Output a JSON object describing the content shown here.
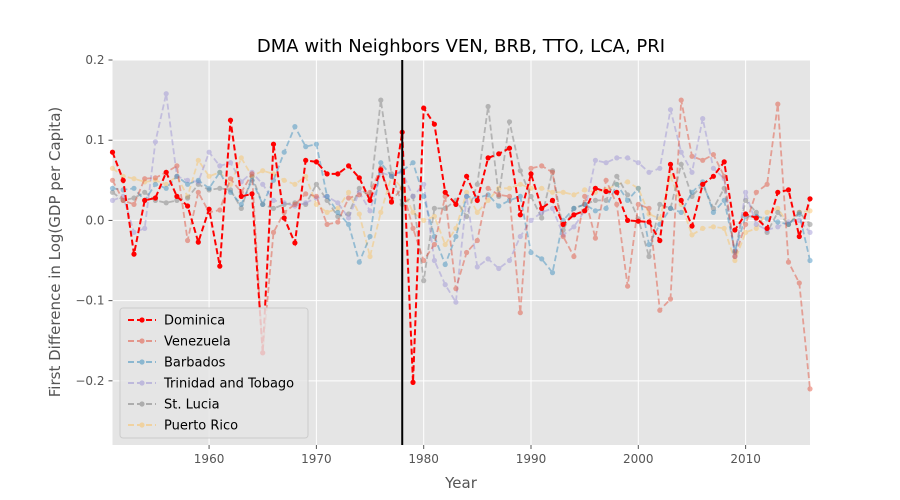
{
  "chart_data": {
    "type": "line",
    "title": "DMA with Neighbors VEN, BRB, TTO, LCA, PRI",
    "xlabel": "Year",
    "ylabel": "First Difference in Log(GDP per Capita)",
    "xlim": [
      1951,
      2016
    ],
    "ylim": [
      -0.28,
      0.2
    ],
    "xticks": [
      1960,
      1970,
      1980,
      1990,
      2000,
      2010
    ],
    "yticks": [
      -0.2,
      -0.1,
      0.0,
      0.1,
      0.2
    ],
    "ytick_labels": [
      "−0.2",
      "−0.1",
      "0.0",
      "0.1",
      "0.2"
    ],
    "grid": true,
    "legend_position": "lower-left",
    "treatment_line_x": 1978,
    "x": [
      1951,
      1952,
      1953,
      1954,
      1955,
      1956,
      1957,
      1958,
      1959,
      1960,
      1961,
      1962,
      1963,
      1964,
      1965,
      1966,
      1967,
      1968,
      1969,
      1970,
      1971,
      1972,
      1973,
      1974,
      1975,
      1976,
      1977,
      1978,
      1979,
      1980,
      1981,
      1982,
      1983,
      1984,
      1985,
      1986,
      1987,
      1988,
      1989,
      1990,
      1991,
      1992,
      1993,
      1994,
      1995,
      1996,
      1997,
      1998,
      1999,
      2000,
      2001,
      2002,
      2003,
      2004,
      2005,
      2006,
      2007,
      2008,
      2009,
      2010,
      2011,
      2012,
      2013,
      2014,
      2015,
      2016
    ],
    "series": [
      {
        "name": "Dominica",
        "color": "#ff0000",
        "opacity": 1.0,
        "values": [
          0.085,
          0.05,
          -0.042,
          0.025,
          0.028,
          0.06,
          0.03,
          0.018,
          -0.027,
          0.014,
          -0.057,
          0.125,
          0.03,
          0.033,
          -0.165,
          0.095,
          0.003,
          -0.028,
          0.075,
          0.073,
          0.058,
          0.058,
          0.068,
          0.053,
          0.025,
          0.063,
          0.023,
          0.11,
          -0.202,
          0.14,
          0.12,
          0.035,
          0.02,
          0.055,
          0.025,
          0.078,
          0.083,
          0.09,
          0.007,
          0.058,
          0.015,
          0.025,
          -0.005,
          0.007,
          0.012,
          0.04,
          0.036,
          0.035,
          0.0,
          -0.001,
          -0.002,
          -0.025,
          0.07,
          0.025,
          -0.007,
          0.045,
          0.055,
          0.073,
          -0.012,
          0.008,
          0.003,
          -0.01,
          0.035,
          0.038,
          -0.02,
          0.027
        ]
      },
      {
        "name": "Venezuela",
        "color": "#e24a33",
        "opacity": 0.45,
        "values": [
          0.05,
          0.025,
          0.02,
          0.052,
          0.053,
          0.06,
          0.068,
          -0.025,
          0.035,
          0.01,
          0.013,
          0.052,
          0.035,
          0.058,
          -0.165,
          -0.015,
          0.01,
          0.02,
          0.033,
          0.03,
          -0.005,
          -0.002,
          0.028,
          0.032,
          0.035,
          0.065,
          0.025,
          0.04,
          -0.01,
          -0.05,
          -0.03,
          0.03,
          -0.085,
          -0.04,
          -0.025,
          0.04,
          0.032,
          0.03,
          -0.115,
          0.065,
          0.068,
          0.06,
          -0.02,
          -0.045,
          0.03,
          -0.022,
          0.05,
          0.02,
          -0.082,
          0.02,
          0.015,
          -0.112,
          -0.098,
          0.15,
          0.08,
          0.075,
          0.082,
          0.055,
          -0.045,
          -0.005,
          0.035,
          0.045,
          0.145,
          -0.052,
          -0.078,
          -0.21
        ]
      },
      {
        "name": "Barbados",
        "color": "#348abd",
        "opacity": 0.45,
        "values": [
          0.04,
          0.038,
          0.04,
          0.025,
          0.045,
          0.04,
          0.055,
          0.045,
          0.05,
          0.04,
          0.06,
          0.035,
          0.02,
          0.05,
          0.02,
          0.05,
          0.085,
          0.117,
          0.092,
          0.095,
          0.03,
          0.01,
          -0.005,
          -0.052,
          -0.02,
          0.072,
          0.055,
          0.062,
          0.072,
          0.03,
          -0.02,
          -0.055,
          -0.02,
          0.03,
          0.028,
          0.032,
          0.018,
          0.025,
          0.03,
          -0.04,
          -0.048,
          -0.065,
          0.0,
          0.015,
          0.02,
          0.012,
          0.015,
          0.045,
          0.025,
          0.04,
          -0.03,
          -0.005,
          0.015,
          0.01,
          0.035,
          0.048,
          0.01,
          0.025,
          -0.038,
          0.005,
          0.005,
          0.002,
          -0.002,
          -0.005,
          0.008,
          -0.05
        ]
      },
      {
        "name": "Trinidad and Tobago",
        "color": "#988ed5",
        "opacity": 0.45,
        "values": [
          0.025,
          0.03,
          -0.015,
          -0.01,
          0.098,
          0.158,
          0.055,
          0.05,
          0.048,
          0.085,
          0.068,
          0.072,
          0.048,
          0.06,
          0.045,
          0.025,
          0.022,
          0.018,
          0.022,
          0.028,
          0.03,
          0.022,
          0.003,
          0.035,
          0.012,
          0.06,
          0.055,
          0.06,
          0.03,
          0.045,
          -0.05,
          -0.08,
          -0.102,
          0.03,
          -0.058,
          -0.048,
          -0.06,
          -0.05,
          -0.02,
          0.0,
          0.01,
          0.015,
          -0.018,
          -0.008,
          0.012,
          0.075,
          0.072,
          0.078,
          0.078,
          0.072,
          0.06,
          0.065,
          0.138,
          0.085,
          0.06,
          0.127,
          0.065,
          0.052,
          -0.045,
          0.035,
          -0.005,
          -0.012,
          -0.008,
          -0.002,
          0.0,
          -0.015
        ]
      },
      {
        "name": "St. Lucia",
        "color": "#777777",
        "opacity": 0.45,
        "values": [
          0.035,
          0.025,
          0.028,
          0.035,
          0.025,
          0.022,
          0.025,
          0.028,
          0.045,
          0.038,
          0.04,
          0.038,
          0.015,
          0.055,
          0.02,
          0.015,
          0.02,
          0.022,
          0.02,
          0.045,
          0.025,
          0.005,
          0.008,
          0.04,
          0.03,
          0.15,
          0.058,
          0.02,
          0.03,
          -0.075,
          0.015,
          0.015,
          0.025,
          0.005,
          0.045,
          0.142,
          0.03,
          0.123,
          0.062,
          0.03,
          0.003,
          0.062,
          -0.012,
          0.015,
          0.02,
          0.025,
          0.025,
          0.055,
          0.032,
          0.002,
          -0.045,
          0.02,
          0.015,
          0.07,
          0.03,
          0.045,
          0.015,
          0.04,
          -0.04,
          0.025,
          0.01,
          -0.015,
          0.01,
          -0.005,
          0.01,
          -0.005
        ]
      },
      {
        "name": "Puerto Rico",
        "color": "#fbc15e",
        "opacity": 0.45,
        "values": [
          0.065,
          0.055,
          0.052,
          0.048,
          0.05,
          0.045,
          0.055,
          0.03,
          0.075,
          0.055,
          0.06,
          0.045,
          0.078,
          0.055,
          0.062,
          0.058,
          0.05,
          0.045,
          0.055,
          0.02,
          0.01,
          0.015,
          0.035,
          0.008,
          -0.045,
          0.01,
          0.055,
          0.04,
          0.01,
          0.0,
          0.005,
          -0.03,
          -0.01,
          0.035,
          0.01,
          0.025,
          0.04,
          0.04,
          0.045,
          0.04,
          0.04,
          0.035,
          0.035,
          0.032,
          0.038,
          0.035,
          0.038,
          0.045,
          0.048,
          0.04,
          0.008,
          0.002,
          0.055,
          0.02,
          -0.018,
          -0.01,
          -0.008,
          -0.01,
          -0.05,
          -0.015,
          -0.01,
          0.01,
          0.015,
          -0.005,
          0.01,
          0.012
        ]
      }
    ]
  }
}
